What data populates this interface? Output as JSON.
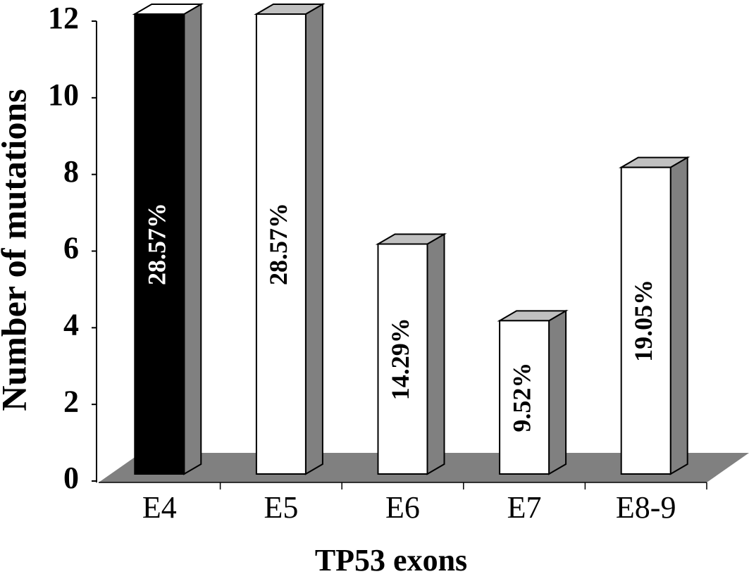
{
  "chart_data": {
    "type": "bar3d",
    "x_label": "TP53 exons",
    "y_label": "Number of mutations",
    "categories": [
      "E4",
      "E5",
      "E6",
      "E7",
      "E8-9"
    ],
    "values": [
      12,
      12,
      6,
      4,
      8
    ],
    "percent_labels": [
      "28.57%",
      "28.57%",
      "14.29%",
      "9.52%",
      "19.05%"
    ],
    "colors": [
      "#000000",
      "#ffffff",
      "#ffffff",
      "#ffffff",
      "#ffffff"
    ],
    "ylim": [
      0,
      12
    ],
    "yticks": [
      0,
      2,
      4,
      6,
      8,
      10,
      12
    ]
  }
}
